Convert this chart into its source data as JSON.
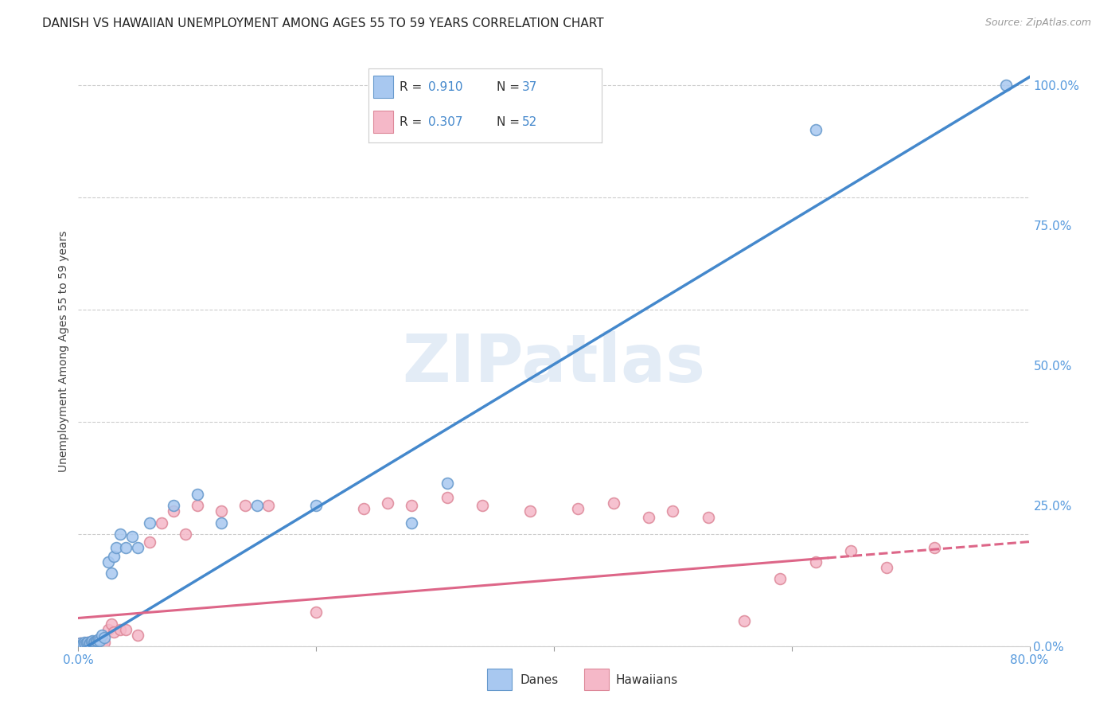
{
  "title": "DANISH VS HAWAIIAN UNEMPLOYMENT AMONG AGES 55 TO 59 YEARS CORRELATION CHART",
  "source": "Source: ZipAtlas.com",
  "ylabel": "Unemployment Among Ages 55 to 59 years",
  "xlim": [
    0.0,
    0.8
  ],
  "ylim": [
    0.0,
    1.05
  ],
  "y_ticks_right": [
    0.0,
    0.25,
    0.5,
    0.75,
    1.0
  ],
  "y_tick_labels_right": [
    "0.0%",
    "25.0%",
    "50.0%",
    "75.0%",
    "100.0%"
  ],
  "danes_color": "#a8c8f0",
  "danes_edge_color": "#6699cc",
  "hawaiians_color": "#f5b8c8",
  "hawaiians_edge_color": "#dd8899",
  "danes_line_color": "#4488cc",
  "hawaiians_line_color": "#dd6688",
  "watermark_text": "ZIPatlas",
  "background_color": "#ffffff",
  "grid_color": "#cccccc",
  "title_color": "#222222",
  "axis_tick_color": "#5599dd",
  "marker_size": 100,
  "danes_x": [
    0.002,
    0.003,
    0.004,
    0.005,
    0.006,
    0.007,
    0.008,
    0.009,
    0.01,
    0.011,
    0.012,
    0.013,
    0.014,
    0.015,
    0.016,
    0.017,
    0.018,
    0.02,
    0.022,
    0.025,
    0.028,
    0.03,
    0.032,
    0.035,
    0.04,
    0.045,
    0.05,
    0.06,
    0.08,
    0.1,
    0.12,
    0.15,
    0.2,
    0.28,
    0.31,
    0.62,
    0.78
  ],
  "danes_y": [
    0.005,
    0.003,
    0.004,
    0.006,
    0.004,
    0.005,
    0.006,
    0.004,
    0.005,
    0.008,
    0.01,
    0.007,
    0.008,
    0.01,
    0.009,
    0.012,
    0.01,
    0.02,
    0.015,
    0.15,
    0.13,
    0.16,
    0.175,
    0.2,
    0.175,
    0.195,
    0.175,
    0.22,
    0.25,
    0.27,
    0.22,
    0.25,
    0.25,
    0.22,
    0.29,
    0.92,
    1.0
  ],
  "hawaiians_x": [
    0.002,
    0.003,
    0.004,
    0.005,
    0.006,
    0.007,
    0.008,
    0.009,
    0.01,
    0.011,
    0.012,
    0.013,
    0.014,
    0.015,
    0.016,
    0.017,
    0.018,
    0.019,
    0.02,
    0.022,
    0.025,
    0.028,
    0.03,
    0.035,
    0.04,
    0.05,
    0.06,
    0.07,
    0.08,
    0.09,
    0.1,
    0.12,
    0.14,
    0.16,
    0.2,
    0.24,
    0.26,
    0.28,
    0.31,
    0.34,
    0.38,
    0.42,
    0.45,
    0.48,
    0.5,
    0.53,
    0.56,
    0.59,
    0.62,
    0.65,
    0.68,
    0.72
  ],
  "hawaiians_y": [
    0.005,
    0.004,
    0.003,
    0.005,
    0.003,
    0.004,
    0.006,
    0.004,
    0.005,
    0.003,
    0.006,
    0.004,
    0.005,
    0.007,
    0.004,
    0.005,
    0.006,
    0.003,
    0.005,
    0.007,
    0.03,
    0.04,
    0.025,
    0.03,
    0.03,
    0.02,
    0.185,
    0.22,
    0.24,
    0.2,
    0.25,
    0.24,
    0.25,
    0.25,
    0.06,
    0.245,
    0.255,
    0.25,
    0.265,
    0.25,
    0.24,
    0.245,
    0.255,
    0.23,
    0.24,
    0.23,
    0.045,
    0.12,
    0.15,
    0.17,
    0.14,
    0.175
  ]
}
